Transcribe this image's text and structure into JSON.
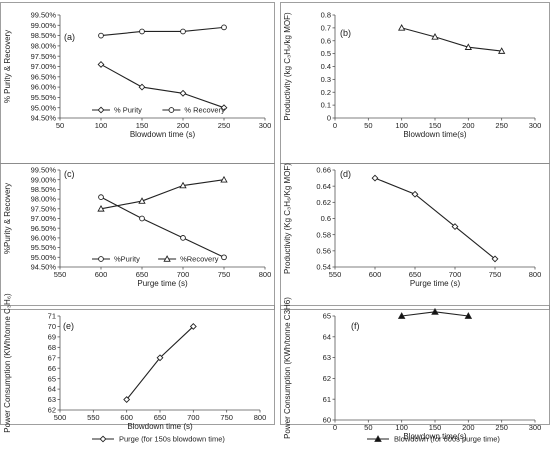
{
  "chart_data": [
    {
      "panel": "(a)",
      "type": "line",
      "xlabel": "Blowdown time (s)",
      "ylabel": "% Purity & Recovery",
      "xlim": [
        50,
        300
      ],
      "xticks": [
        50,
        100,
        150,
        200,
        250,
        300
      ],
      "ylim": [
        94.5,
        99.5
      ],
      "yticks": [
        "94.50%",
        "95.00%",
        "95.50%",
        "96.00%",
        "96.50%",
        "97.00%",
        "97.50%",
        "98.00%",
        "98.50%",
        "99.00%",
        "99.50%"
      ],
      "legend": "bottom",
      "series": [
        {
          "name": "% Purity",
          "marker": "diamond",
          "x": [
            100,
            150,
            200,
            250
          ],
          "values": [
            97.1,
            96.0,
            95.7,
            95.0
          ]
        },
        {
          "name": "% Recovery",
          "marker": "circle",
          "x": [
            100,
            150,
            200,
            250
          ],
          "values": [
            98.5,
            98.7,
            98.7,
            98.9
          ]
        }
      ]
    },
    {
      "panel": "(b)",
      "type": "line",
      "xlabel": "Blowdown time(s)",
      "ylabel": "Productivity (kg C₃H₆/kg MOF)",
      "xlim": [
        0,
        300
      ],
      "xticks": [
        0,
        50,
        100,
        150,
        200,
        250,
        300
      ],
      "ylim": [
        0,
        0.8
      ],
      "yticks": [
        "0",
        "0.1",
        "0.2",
        "0.3",
        "0.4",
        "0.5",
        "0.6",
        "0.7",
        "0.8"
      ],
      "series": [
        {
          "marker": "triangle",
          "x": [
            100,
            150,
            200,
            250
          ],
          "values": [
            0.7,
            0.63,
            0.55,
            0.52
          ]
        }
      ]
    },
    {
      "panel": "(c)",
      "type": "line",
      "xlabel": "Purge time (s)",
      "ylabel": "%Purity & Recovery",
      "xlim": [
        550,
        800
      ],
      "xticks": [
        550,
        600,
        650,
        700,
        750,
        800
      ],
      "ylim": [
        94.5,
        99.5
      ],
      "yticks": [
        "94.50%",
        "95.00%",
        "95.50%",
        "96.00%",
        "96.50%",
        "97.00%",
        "97.50%",
        "98.00%",
        "98.50%",
        "99.00%",
        "99.50%"
      ],
      "legend": "bottom",
      "series": [
        {
          "name": "%Purity",
          "marker": "circle",
          "x": [
            600,
            650,
            700,
            750
          ],
          "values": [
            98.1,
            97.0,
            96.0,
            95.0
          ]
        },
        {
          "name": "%Recovery",
          "marker": "triangle",
          "x": [
            600,
            650,
            700,
            750
          ],
          "values": [
            97.5,
            97.9,
            98.7,
            99.0
          ]
        }
      ]
    },
    {
      "panel": "(d)",
      "type": "line",
      "xlabel": "Purge time (s)",
      "ylabel": "Productivity (Kg C₃H₆/Kg MOF)",
      "xlim": [
        550,
        800
      ],
      "xticks": [
        550,
        600,
        650,
        700,
        750,
        800
      ],
      "ylim": [
        0.54,
        0.66
      ],
      "yticks": [
        "0.54",
        "0.56",
        "0.58",
        "0.6",
        "0.62",
        "0.64",
        "0.66"
      ],
      "series": [
        {
          "marker": "diamond",
          "x": [
            600,
            650,
            700,
            750
          ],
          "values": [
            0.65,
            0.63,
            0.59,
            0.55
          ]
        }
      ]
    },
    {
      "panel": "(e)",
      "type": "line",
      "xlabel": "Blowdown time (s)",
      "ylabel": "Power Consumption (KWh/tonne C₃H₆)",
      "xlim": [
        500,
        800
      ],
      "xticks": [
        500,
        550,
        600,
        650,
        700,
        750,
        800
      ],
      "ylim": [
        62,
        71
      ],
      "yticks": [
        "62",
        "63",
        "64",
        "65",
        "66",
        "67",
        "68",
        "69",
        "70",
        "71"
      ],
      "legend": "bottom",
      "series": [
        {
          "name": "Purge (for 150s blowdown time)",
          "marker": "diamond",
          "x": [
            600,
            650,
            700
          ],
          "values": [
            63,
            67,
            70
          ]
        }
      ]
    },
    {
      "panel": "(f)",
      "type": "line",
      "xlabel": "Blowdown time(s)",
      "ylabel": "Power Consumption (KWh/tonne C3H6)",
      "xlim": [
        0,
        300
      ],
      "xticks": [
        0,
        50,
        100,
        150,
        200,
        250,
        300
      ],
      "ylim": [
        60,
        65
      ],
      "yticks": [
        "60",
        "61",
        "62",
        "63",
        "64",
        "65"
      ],
      "legend": "bottom",
      "series": [
        {
          "name": "Blowdown (for 600s purge time)",
          "marker": "triangle-filled",
          "x": [
            100,
            150,
            200
          ],
          "values": [
            65.0,
            65.2,
            65.0
          ]
        }
      ]
    }
  ]
}
